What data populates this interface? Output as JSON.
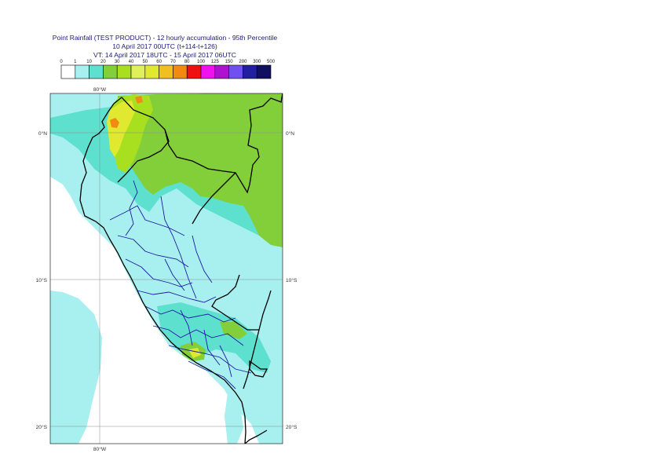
{
  "header": {
    "line1": "Point Rainfall (TEST PRODUCT) - 12 hourly accumulation - 95th Percentile",
    "line2": "10 April 2017 00UTC (t+114-t+126)",
    "line3": "VT: 14 April 2017 18UTC - 15 April 2017 06UTC"
  },
  "legend": {
    "thresholds": [
      "0",
      "1",
      "10",
      "20",
      "30",
      "40",
      "50",
      "60",
      "70",
      "80",
      "100",
      "125",
      "150",
      "200",
      "300",
      "500"
    ],
    "colors": [
      "#ffffff",
      "#a8f0ef",
      "#5ee0cf",
      "#82cf3a",
      "#a8e020",
      "#e0f05a",
      "#e0e830",
      "#f0c020",
      "#f08a10",
      "#f01010",
      "#f010f0",
      "#b010d0",
      "#7050f0",
      "#2020a0",
      "#101060"
    ]
  },
  "map": {
    "lon_labels": [
      "80°W",
      "80°W"
    ],
    "lat_labels_left": [
      "0°N",
      "10°S",
      "20°S"
    ],
    "lat_labels_right": [
      "0°N",
      "10°S",
      "20°S"
    ],
    "colors": {
      "sea": "#ffffff",
      "light": "#a8f0ef",
      "mid": "#5ee0cf",
      "green": "#82cf3a",
      "lime": "#a8e020",
      "yellow": "#e0e830",
      "orange": "#f08a10",
      "coast": "#000000",
      "border": "#1a1aa0"
    }
  }
}
